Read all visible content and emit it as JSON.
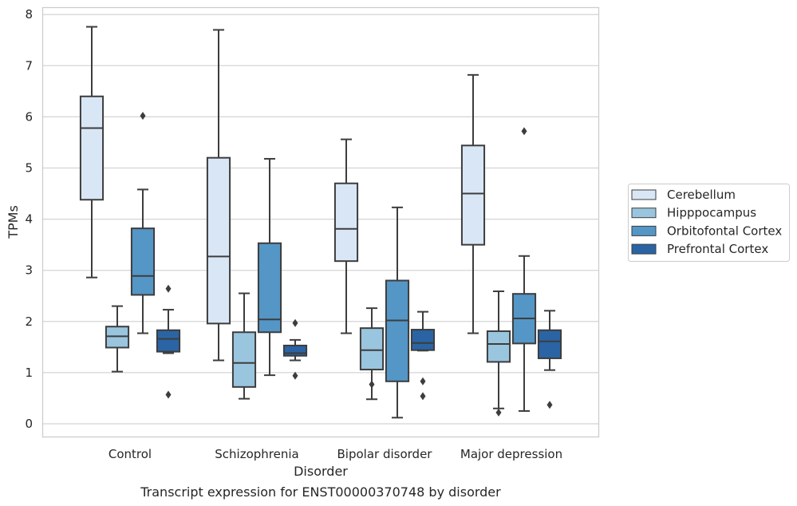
{
  "chart_data": {
    "type": "boxplot",
    "caption": "Transcript expression for ENST00000370748 by disorder",
    "xlabel": "Disorder",
    "ylabel": "TPMs",
    "ylim": [
      -0.25,
      8.15
    ],
    "yticks": [
      0,
      1,
      2,
      3,
      4,
      5,
      6,
      7,
      8
    ],
    "grid": true,
    "legend_position": "right",
    "categories": [
      "Control",
      "Schizophrenia",
      "Bipolar disorder",
      "Major depression"
    ],
    "series": [
      {
        "name": "Cerebellum",
        "color": "#d9e6f5",
        "boxes": [
          {
            "whisker_low": 2.86,
            "q1": 4.38,
            "median": 5.78,
            "q3": 6.4,
            "whisker_high": 7.76,
            "outliers": []
          },
          {
            "whisker_low": 1.24,
            "q1": 1.96,
            "median": 3.27,
            "q3": 5.2,
            "whisker_high": 7.7,
            "outliers": []
          },
          {
            "whisker_low": 1.77,
            "q1": 3.18,
            "median": 3.81,
            "q3": 4.7,
            "whisker_high": 5.56,
            "outliers": []
          },
          {
            "whisker_low": 1.77,
            "q1": 3.5,
            "median": 4.5,
            "q3": 5.44,
            "whisker_high": 6.82,
            "outliers": []
          }
        ]
      },
      {
        "name": "Hipppocampus",
        "color": "#9ac5de",
        "boxes": [
          {
            "whisker_low": 1.02,
            "q1": 1.49,
            "median": 1.71,
            "q3": 1.9,
            "whisker_high": 2.3,
            "outliers": []
          },
          {
            "whisker_low": 0.49,
            "q1": 0.72,
            "median": 1.19,
            "q3": 1.79,
            "whisker_high": 2.55,
            "outliers": []
          },
          {
            "whisker_low": 0.48,
            "q1": 1.06,
            "median": 1.44,
            "q3": 1.87,
            "whisker_high": 2.26,
            "outliers": [
              0.77
            ]
          },
          {
            "whisker_low": 0.3,
            "q1": 1.21,
            "median": 1.56,
            "q3": 1.81,
            "whisker_high": 2.59,
            "outliers": [
              0.22
            ]
          }
        ]
      },
      {
        "name": "Orbitofontal Cortex",
        "color": "#5496c6",
        "boxes": [
          {
            "whisker_low": 1.77,
            "q1": 2.52,
            "median": 2.89,
            "q3": 3.82,
            "whisker_high": 4.58,
            "outliers": [
              6.02
            ]
          },
          {
            "whisker_low": 0.95,
            "q1": 1.79,
            "median": 2.04,
            "q3": 3.53,
            "whisker_high": 5.18,
            "outliers": []
          },
          {
            "whisker_low": 0.12,
            "q1": 0.83,
            "median": 2.02,
            "q3": 2.8,
            "whisker_high": 4.23,
            "outliers": []
          },
          {
            "whisker_low": 0.25,
            "q1": 1.57,
            "median": 2.06,
            "q3": 2.54,
            "whisker_high": 3.28,
            "outliers": [
              5.72
            ]
          }
        ]
      },
      {
        "name": "Prefrontal Cortex",
        "color": "#2a64a4",
        "boxes": [
          {
            "whisker_low": 1.38,
            "q1": 1.41,
            "median": 1.66,
            "q3": 1.83,
            "whisker_high": 2.23,
            "outliers": [
              2.64,
              0.57
            ]
          },
          {
            "whisker_low": 1.24,
            "q1": 1.33,
            "median": 1.38,
            "q3": 1.53,
            "whisker_high": 1.64,
            "outliers": [
              1.97,
              0.94
            ]
          },
          {
            "whisker_low": 1.43,
            "q1": 1.44,
            "median": 1.58,
            "q3": 1.84,
            "whisker_high": 2.19,
            "outliers": [
              0.83,
              0.54
            ]
          },
          {
            "whisker_low": 1.05,
            "q1": 1.28,
            "median": 1.61,
            "q3": 1.83,
            "whisker_high": 2.21,
            "outliers": [
              0.37
            ]
          }
        ]
      }
    ]
  }
}
